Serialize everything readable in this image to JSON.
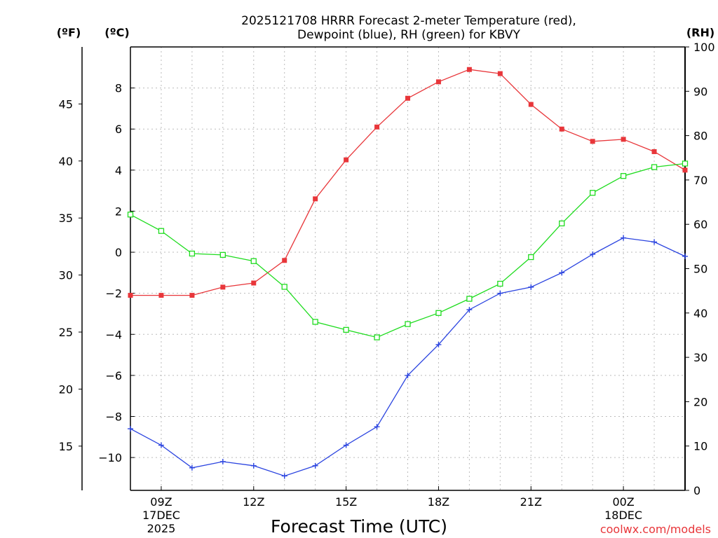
{
  "chart_data": {
    "type": "line",
    "title_line1": "2025121708 HRRR Forecast 2-meter Temperature (red),",
    "title_line2": "Dewpoint (blue), RH (green) for KBVY",
    "xlabel": "Forecast Time (UTC)",
    "credit": "coolwx.com/models",
    "units": {
      "fahrenheit": "(ºF)",
      "celsius": "(ºC)",
      "rh": "(RH)"
    },
    "x_hours": [
      8,
      9,
      10,
      11,
      12,
      13,
      14,
      15,
      16,
      17,
      18,
      19,
      20,
      21,
      22,
      23,
      24,
      25,
      26
    ],
    "x_range": [
      8,
      26
    ],
    "x_ticks": [
      {
        "hour": 9,
        "lines": [
          "09Z",
          "17DEC",
          "2025"
        ]
      },
      {
        "hour": 12,
        "lines": [
          "12Z"
        ]
      },
      {
        "hour": 15,
        "lines": [
          "15Z"
        ]
      },
      {
        "hour": 18,
        "lines": [
          "18Z"
        ]
      },
      {
        "hour": 21,
        "lines": [
          "21Z"
        ]
      },
      {
        "hour": 24,
        "lines": [
          "00Z",
          "18DEC"
        ]
      }
    ],
    "celsius_range": [
      -11.6,
      10.0
    ],
    "celsius_ticks": [
      8,
      6,
      4,
      2,
      0,
      -2,
      -4,
      -6,
      -8,
      -10
    ],
    "fahrenheit_ticks": [
      45,
      40,
      35,
      30,
      25,
      20,
      15
    ],
    "rh_range": [
      0,
      100
    ],
    "rh_ticks": [
      100,
      90,
      80,
      70,
      60,
      50,
      40,
      30,
      20,
      10,
      0
    ],
    "series": [
      {
        "name": "Temperature",
        "axis": "celsius",
        "color": "#e8363a",
        "marker": "filled-square",
        "values": [
          -2.1,
          -2.1,
          -2.1,
          -1.7,
          -1.5,
          -0.4,
          2.6,
          4.5,
          6.1,
          7.5,
          8.3,
          8.9,
          8.7,
          7.2,
          6.0,
          5.4,
          5.5,
          4.9,
          4.0
        ]
      },
      {
        "name": "Dewpoint",
        "axis": "celsius",
        "color": "#2b44e0",
        "marker": "plus",
        "values": [
          -8.6,
          -9.4,
          -10.5,
          -10.2,
          -10.4,
          -10.9,
          -10.4,
          -9.4,
          -8.5,
          -6.0,
          -4.5,
          -2.8,
          -2.0,
          -1.7,
          -1.0,
          -0.1,
          0.7,
          0.5,
          -0.2
        ]
      },
      {
        "name": "RH",
        "axis": "rh",
        "color": "#1fdc1f",
        "marker": "open-square",
        "values": [
          62.2,
          58.5,
          53.4,
          53.1,
          51.7,
          45.9,
          38.0,
          36.2,
          34.5,
          37.5,
          40.0,
          43.2,
          46.6,
          52.6,
          60.2,
          67.1,
          70.9,
          72.9,
          73.7
        ]
      }
    ]
  }
}
